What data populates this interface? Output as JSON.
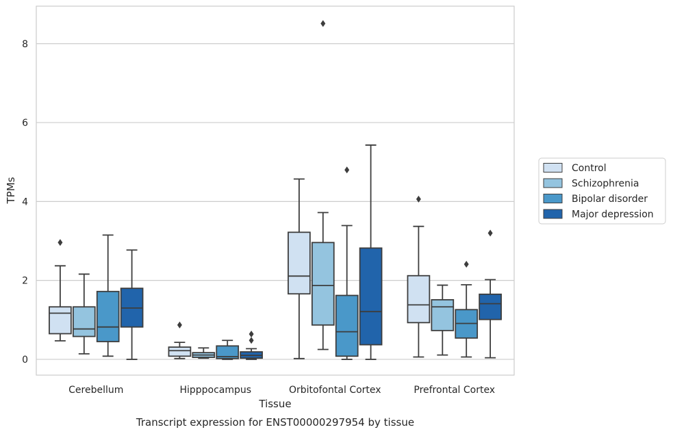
{
  "chart_data": {
    "type": "boxplot",
    "caption": "Transcript expression for ENST00000297954 by tissue",
    "xlabel": "Tissue",
    "ylabel": "TPMs",
    "ylim": [
      -0.4,
      8.95
    ],
    "yticks": [
      0,
      2,
      4,
      6,
      8
    ],
    "grid": true,
    "legend_position": "right",
    "categories": [
      "Cerebellum",
      "Hipppocampus",
      "Orbitofontal Cortex",
      "Prefrontal Cortex"
    ],
    "series": [
      {
        "name": "Control",
        "color": "#d0e1f2",
        "boxes": [
          {
            "whisker_low": 0.47,
            "q1": 0.65,
            "median": 1.17,
            "q3": 1.33,
            "whisker_high": 2.37,
            "outliers": [
              2.96
            ]
          },
          {
            "whisker_low": 0.02,
            "q1": 0.08,
            "median": 0.22,
            "q3": 0.31,
            "whisker_high": 0.43,
            "outliers": [
              0.87
            ]
          },
          {
            "whisker_low": 0.02,
            "q1": 1.66,
            "median": 2.11,
            "q3": 3.22,
            "whisker_high": 4.57,
            "outliers": []
          },
          {
            "whisker_low": 0.06,
            "q1": 0.93,
            "median": 1.38,
            "q3": 2.12,
            "whisker_high": 3.37,
            "outliers": [
              4.06
            ]
          }
        ]
      },
      {
        "name": "Schizophrenia",
        "color": "#94c4df",
        "boxes": [
          {
            "whisker_low": 0.14,
            "q1": 0.58,
            "median": 0.77,
            "q3": 1.33,
            "whisker_high": 2.16,
            "outliers": []
          },
          {
            "whisker_low": 0.03,
            "q1": 0.05,
            "median": 0.11,
            "q3": 0.17,
            "whisker_high": 0.29,
            "outliers": []
          },
          {
            "whisker_low": 0.25,
            "q1": 0.87,
            "median": 1.87,
            "q3": 2.96,
            "whisker_high": 3.72,
            "outliers": [
              8.51
            ]
          },
          {
            "whisker_low": 0.11,
            "q1": 0.73,
            "median": 1.33,
            "q3": 1.51,
            "whisker_high": 1.88,
            "outliers": []
          }
        ]
      },
      {
        "name": "Bipolar disorder",
        "color": "#4a98c9",
        "boxes": [
          {
            "whisker_low": 0.08,
            "q1": 0.45,
            "median": 0.82,
            "q3": 1.72,
            "whisker_high": 3.15,
            "outliers": []
          },
          {
            "whisker_low": 0.0,
            "q1": 0.02,
            "median": 0.07,
            "q3": 0.34,
            "whisker_high": 0.48,
            "outliers": []
          },
          {
            "whisker_low": 0.0,
            "q1": 0.08,
            "median": 0.7,
            "q3": 1.62,
            "whisker_high": 3.39,
            "outliers": [
              4.8
            ]
          },
          {
            "whisker_low": 0.06,
            "q1": 0.54,
            "median": 0.91,
            "q3": 1.26,
            "whisker_high": 1.89,
            "outliers": [
              2.41
            ]
          }
        ]
      },
      {
        "name": "Major depression",
        "color": "#2164ab",
        "boxes": [
          {
            "whisker_low": 0.0,
            "q1": 0.82,
            "median": 1.3,
            "q3": 1.8,
            "whisker_high": 2.77,
            "outliers": []
          },
          {
            "whisker_low": 0.0,
            "q1": 0.03,
            "median": 0.1,
            "q3": 0.19,
            "whisker_high": 0.27,
            "outliers": [
              0.48,
              0.64
            ]
          },
          {
            "whisker_low": 0.0,
            "q1": 0.37,
            "median": 1.21,
            "q3": 2.82,
            "whisker_high": 5.43,
            "outliers": []
          },
          {
            "whisker_low": 0.04,
            "q1": 1.01,
            "median": 1.41,
            "q3": 1.65,
            "whisker_high": 2.02,
            "outliers": [
              3.2
            ]
          }
        ]
      }
    ]
  }
}
